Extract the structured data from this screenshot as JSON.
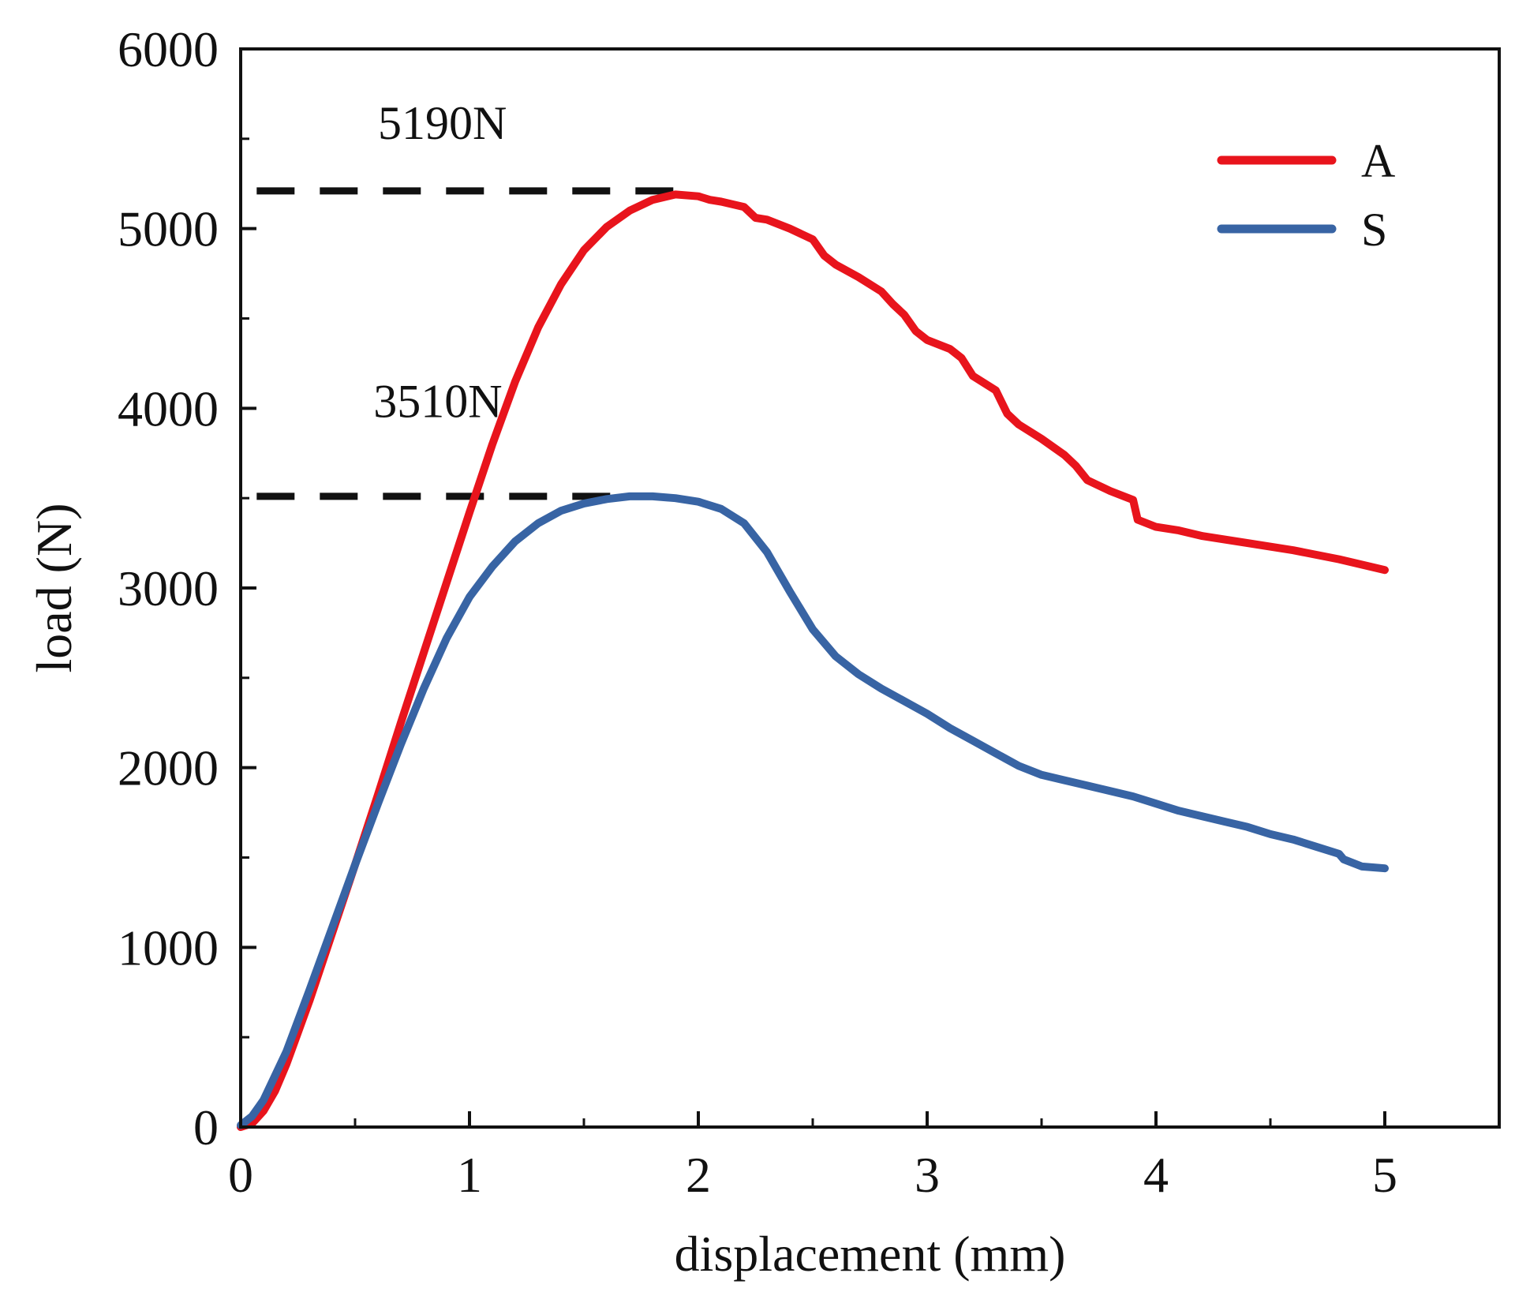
{
  "chart_data": {
    "type": "line",
    "xlabel": "displacement (mm)",
    "ylabel": "load (N)",
    "xlim": [
      0,
      5.5
    ],
    "ylim": [
      0,
      6000
    ],
    "xticks": [
      0,
      1,
      2,
      3,
      4,
      5
    ],
    "xtick_labels": [
      "0",
      "1",
      "2",
      "3",
      "4",
      "5"
    ],
    "x_minor_step": 0.5,
    "yticks": [
      0,
      1000,
      2000,
      3000,
      4000,
      5000,
      6000
    ],
    "ytick_labels": [
      "0",
      "1000",
      "2000",
      "3000",
      "4000",
      "5000",
      "6000"
    ],
    "y_minor_step": 500,
    "grid": false,
    "legend_position": "top-right",
    "series": [
      {
        "name": "A",
        "color": "#e8141c",
        "points": [
          [
            0,
            0
          ],
          [
            0.05,
            20
          ],
          [
            0.1,
            90
          ],
          [
            0.15,
            200
          ],
          [
            0.2,
            350
          ],
          [
            0.3,
            700
          ],
          [
            0.4,
            1080
          ],
          [
            0.5,
            1460
          ],
          [
            0.6,
            1850
          ],
          [
            0.7,
            2250
          ],
          [
            0.8,
            2640
          ],
          [
            0.9,
            3030
          ],
          [
            1.0,
            3420
          ],
          [
            1.1,
            3800
          ],
          [
            1.2,
            4150
          ],
          [
            1.3,
            4450
          ],
          [
            1.4,
            4690
          ],
          [
            1.5,
            4880
          ],
          [
            1.6,
            5010
          ],
          [
            1.7,
            5100
          ],
          [
            1.8,
            5160
          ],
          [
            1.9,
            5190
          ],
          [
            2.0,
            5180
          ],
          [
            2.05,
            5160
          ],
          [
            2.1,
            5150
          ],
          [
            2.2,
            5120
          ],
          [
            2.25,
            5060
          ],
          [
            2.3,
            5050
          ],
          [
            2.4,
            5000
          ],
          [
            2.5,
            4940
          ],
          [
            2.55,
            4850
          ],
          [
            2.6,
            4800
          ],
          [
            2.7,
            4730
          ],
          [
            2.8,
            4650
          ],
          [
            2.85,
            4580
          ],
          [
            2.9,
            4520
          ],
          [
            2.95,
            4430
          ],
          [
            3.0,
            4380
          ],
          [
            3.1,
            4330
          ],
          [
            3.15,
            4280
          ],
          [
            3.2,
            4180
          ],
          [
            3.3,
            4100
          ],
          [
            3.35,
            3970
          ],
          [
            3.4,
            3910
          ],
          [
            3.5,
            3830
          ],
          [
            3.6,
            3740
          ],
          [
            3.65,
            3680
          ],
          [
            3.7,
            3600
          ],
          [
            3.8,
            3540
          ],
          [
            3.9,
            3490
          ],
          [
            3.92,
            3380
          ],
          [
            4.0,
            3340
          ],
          [
            4.1,
            3320
          ],
          [
            4.2,
            3290
          ],
          [
            4.4,
            3250
          ],
          [
            4.6,
            3210
          ],
          [
            4.8,
            3160
          ],
          [
            5.0,
            3100
          ]
        ]
      },
      {
        "name": "S",
        "color": "#3864a4",
        "points": [
          [
            0,
            10
          ],
          [
            0.05,
            60
          ],
          [
            0.1,
            150
          ],
          [
            0.2,
            420
          ],
          [
            0.3,
            760
          ],
          [
            0.4,
            1110
          ],
          [
            0.5,
            1460
          ],
          [
            0.6,
            1800
          ],
          [
            0.7,
            2130
          ],
          [
            0.8,
            2440
          ],
          [
            0.9,
            2720
          ],
          [
            1.0,
            2950
          ],
          [
            1.1,
            3120
          ],
          [
            1.2,
            3260
          ],
          [
            1.3,
            3360
          ],
          [
            1.4,
            3430
          ],
          [
            1.5,
            3470
          ],
          [
            1.6,
            3495
          ],
          [
            1.7,
            3510
          ],
          [
            1.8,
            3510
          ],
          [
            1.9,
            3500
          ],
          [
            2.0,
            3480
          ],
          [
            2.1,
            3440
          ],
          [
            2.2,
            3360
          ],
          [
            2.3,
            3200
          ],
          [
            2.4,
            2980
          ],
          [
            2.5,
            2770
          ],
          [
            2.6,
            2620
          ],
          [
            2.7,
            2520
          ],
          [
            2.8,
            2440
          ],
          [
            2.9,
            2370
          ],
          [
            3.0,
            2300
          ],
          [
            3.1,
            2220
          ],
          [
            3.2,
            2150
          ],
          [
            3.3,
            2080
          ],
          [
            3.4,
            2010
          ],
          [
            3.5,
            1960
          ],
          [
            3.6,
            1930
          ],
          [
            3.7,
            1900
          ],
          [
            3.8,
            1870
          ],
          [
            3.9,
            1840
          ],
          [
            4.0,
            1800
          ],
          [
            4.1,
            1760
          ],
          [
            4.2,
            1730
          ],
          [
            4.3,
            1700
          ],
          [
            4.4,
            1670
          ],
          [
            4.5,
            1630
          ],
          [
            4.6,
            1600
          ],
          [
            4.7,
            1560
          ],
          [
            4.8,
            1520
          ],
          [
            4.82,
            1490
          ],
          [
            4.9,
            1450
          ],
          [
            5.0,
            1440
          ]
        ]
      }
    ],
    "annotations": [
      {
        "text": "5190N",
        "x": 0.6,
        "y": 5500,
        "ref_y": 5210,
        "line_x": [
          0.07,
          2.0
        ]
      },
      {
        "text": "3510N",
        "x": 0.58,
        "y": 3950,
        "ref_y": 3510,
        "line_x": [
          0.07,
          1.75
        ]
      }
    ]
  }
}
